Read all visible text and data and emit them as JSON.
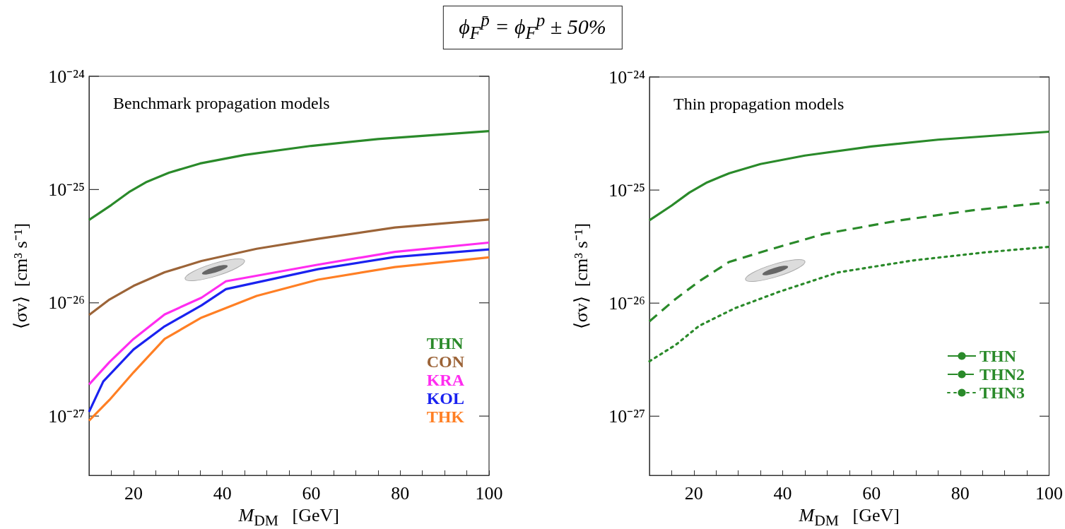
{
  "chart_data": [
    {
      "type": "line",
      "title": "ϕ$_{F}$$^{p̄}$ = ϕ$_{F}$$^{p}$ ± 50%",
      "xlabel": "M$_{DM}$   [GeV]",
      "ylabel": "⟨σv⟩  [cm³ s⁻¹]",
      "annotations": [
        "Benchmark propagation models"
      ],
      "log": "y",
      "grid": false,
      "legend": "bottom right",
      "marker": "none",
      "line_style": "solid",
      "xlim": [
        10,
        100
      ],
      "ylim": [
        3e-28,
        1e-24
      ],
      "xticks": [
        {
          "value": 15,
          "label": null
        },
        20,
        {
          "value": 25,
          "label": null
        },
        {
          "value": 30,
          "label": null
        },
        {
          "value": 35,
          "label": null
        },
        40,
        {
          "value": 45,
          "label": null
        },
        {
          "value": 50,
          "label": null
        },
        {
          "value": 55,
          "label": null
        },
        60,
        {
          "value": 65,
          "label": null
        },
        {
          "value": 70,
          "label": null
        },
        {
          "value": 75,
          "label": null
        },
        80,
        {
          "value": 85,
          "label": null
        },
        {
          "value": 90,
          "label": null
        },
        {
          "value": 95,
          "label": null
        },
        100
      ],
      "yticks": [
        {
          "value": 1e-27,
          "label": "10⁻²⁷"
        },
        {
          "value": 1e-26,
          "label": "10⁻²⁶"
        },
        {
          "value": 1e-25,
          "label": "10⁻²⁵"
        },
        {
          "value": 1e-24,
          "label": "10⁻²⁴"
        }
      ],
      "series": [
        {
          "name": "THN",
          "color": "#2a8a2a",
          "x": [
            10,
            15,
            19,
            23,
            28,
            35,
            45,
            60,
            75,
            100
          ],
          "values": [
            5.4e-26,
            7.3e-26,
            9.5e-26,
            1.17e-25,
            1.41e-25,
            1.7e-25,
            2.02e-25,
            2.43e-25,
            2.79e-25,
            3.28e-25
          ]
        },
        {
          "name": "CON",
          "color": "#9c6438",
          "x": [
            10,
            14.6,
            20,
            27,
            35.3,
            47.7,
            61.5,
            78.8,
            100
          ],
          "values": [
            7.8e-27,
            1.07e-26,
            1.41e-26,
            1.86e-26,
            2.34e-26,
            3e-26,
            3.67e-26,
            4.62e-26,
            5.43e-26
          ]
        },
        {
          "name": "KRA",
          "color": "#ff2cf0",
          "x": [
            10,
            14.6,
            20,
            27,
            35.3,
            40.8,
            61.5,
            78.8,
            100
          ],
          "values": [
            1.9e-27,
            3e-27,
            4.8e-27,
            7.9e-27,
            1.11e-26,
            1.55e-26,
            2.17e-26,
            2.82e-26,
            3.4e-26
          ]
        },
        {
          "name": "KOL",
          "color": "#1a22f0",
          "x": [
            10,
            13.2,
            20,
            27,
            35.3,
            40.8,
            61.5,
            78.8,
            100
          ],
          "values": [
            1.09e-27,
            2.02e-27,
            3.87e-27,
            6.2e-27,
            9.5e-27,
            1.32e-26,
            1.98e-26,
            2.54e-26,
            2.96e-26
          ]
        },
        {
          "name": "THK",
          "color": "#ff7f24",
          "x": [
            10,
            14.6,
            20,
            27,
            35.3,
            47.7,
            61.5,
            78.8,
            100
          ],
          "values": [
            9.1e-28,
            1.39e-27,
            2.43e-27,
            4.8e-27,
            7.4e-27,
            1.15e-26,
            1.6e-26,
            2.07e-26,
            2.52e-26
          ]
        }
      ]
    },
    {
      "type": "line",
      "xlabel": "M$_{DM}$   [GeV]",
      "ylabel": "⟨σv⟩  [cm³ s⁻¹]",
      "annotations": [
        "Thin propagation models"
      ],
      "log": "y",
      "grid": false,
      "legend": "bottom right",
      "marker": "none",
      "xlim": [
        10,
        100
      ],
      "ylim": [
        3e-28,
        1e-24
      ],
      "xticks": [
        {
          "value": 15,
          "label": null
        },
        20,
        {
          "value": 25,
          "label": null
        },
        {
          "value": 30,
          "label": null
        },
        {
          "value": 35,
          "label": null
        },
        40,
        {
          "value": 45,
          "label": null
        },
        {
          "value": 50,
          "label": null
        },
        {
          "value": 55,
          "label": null
        },
        60,
        {
          "value": 65,
          "label": null
        },
        {
          "value": 70,
          "label": null
        },
        {
          "value": 75,
          "label": null
        },
        80,
        {
          "value": 85,
          "label": null
        },
        {
          "value": 90,
          "label": null
        },
        {
          "value": 95,
          "label": null
        },
        100
      ],
      "yticks": [
        {
          "value": 1e-27,
          "label": "10⁻²⁷"
        },
        {
          "value": 1e-26,
          "label": "10⁻²⁶"
        },
        {
          "value": 1e-25,
          "label": "10⁻²⁵"
        },
        {
          "value": 1e-24,
          "label": "10⁻²⁴"
        }
      ],
      "series": [
        {
          "name": "THN",
          "color": "#2a8a2a",
          "line_style": "solid",
          "x": [
            10,
            15,
            19,
            23,
            28,
            35,
            45,
            60,
            75,
            100
          ],
          "values": [
            5.4e-26,
            7.3e-26,
            9.5e-26,
            1.17e-25,
            1.41e-25,
            1.7e-25,
            2.02e-25,
            2.43e-25,
            2.79e-25,
            3.28e-25
          ]
        },
        {
          "name": "THN2",
          "color": "#2a8a2a",
          "line_style": "dashed",
          "x": [
            10,
            15.9,
            21.2,
            27.9,
            36.6,
            49.3,
            65.9,
            82.6,
            100
          ],
          "values": [
            6.9e-27,
            1.09e-26,
            1.56e-26,
            2.31e-26,
            2.94e-26,
            4.09e-26,
            5.36e-26,
            6.61e-26,
            7.8e-26
          ]
        },
        {
          "name": "THN3",
          "color": "#2a8a2a",
          "line_style": "dotted",
          "x": [
            10,
            15.9,
            21.2,
            29.2,
            39.2,
            52.5,
            69.2,
            85.9,
            100
          ],
          "values": [
            3.06e-27,
            4.27e-27,
            6.3e-27,
            9e-27,
            1.26e-26,
            1.87e-26,
            2.38e-26,
            2.82e-26,
            3.15e-26
          ]
        }
      ]
    }
  ]
}
